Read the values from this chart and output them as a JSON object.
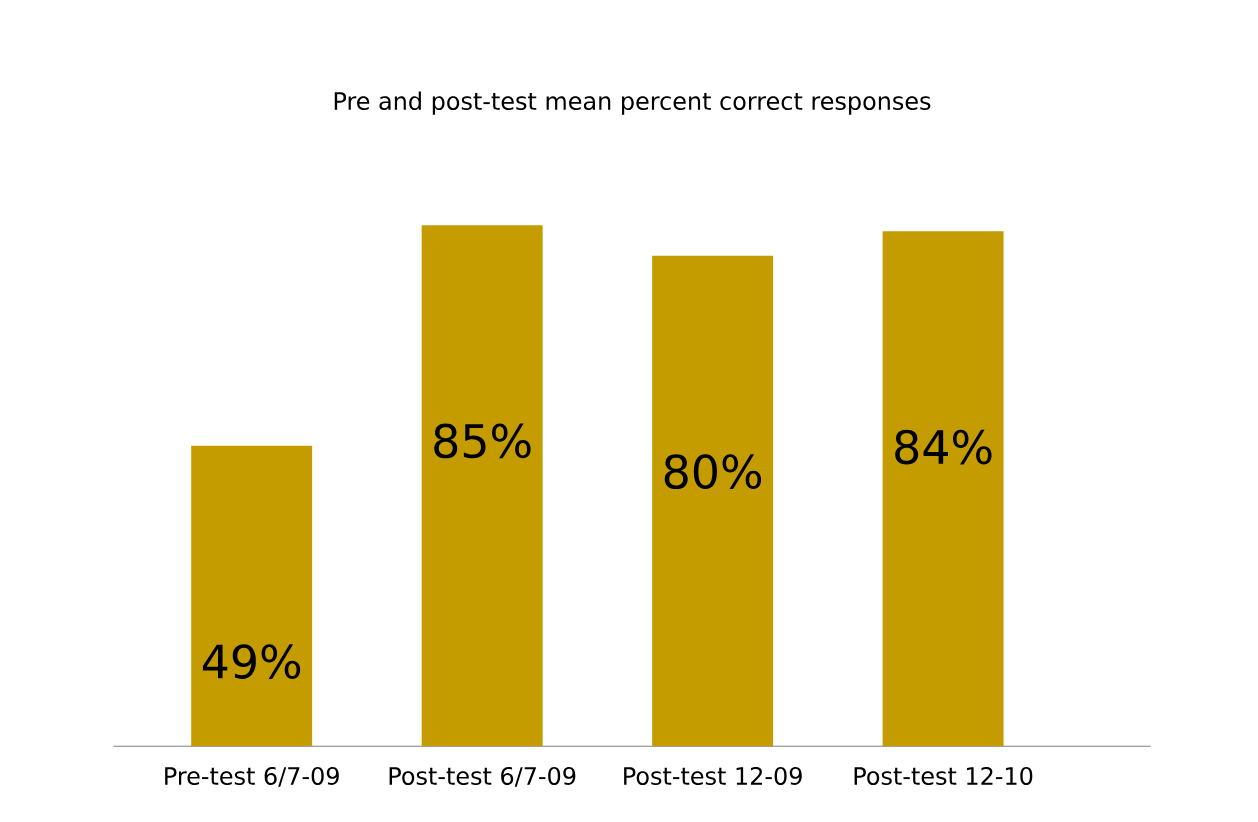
{
  "chart_data": {
    "type": "bar",
    "title": "Pre and post-test mean percent correct responses",
    "categories": [
      "Pre-test 6/7-09",
      "Post-test 6/7-09",
      "Post-test 12-09",
      "Post-test 12-10"
    ],
    "values": [
      49,
      85,
      80,
      84
    ],
    "value_labels": [
      "49%",
      "85%",
      "80%",
      "84%"
    ],
    "color": "#c49c00"
  }
}
